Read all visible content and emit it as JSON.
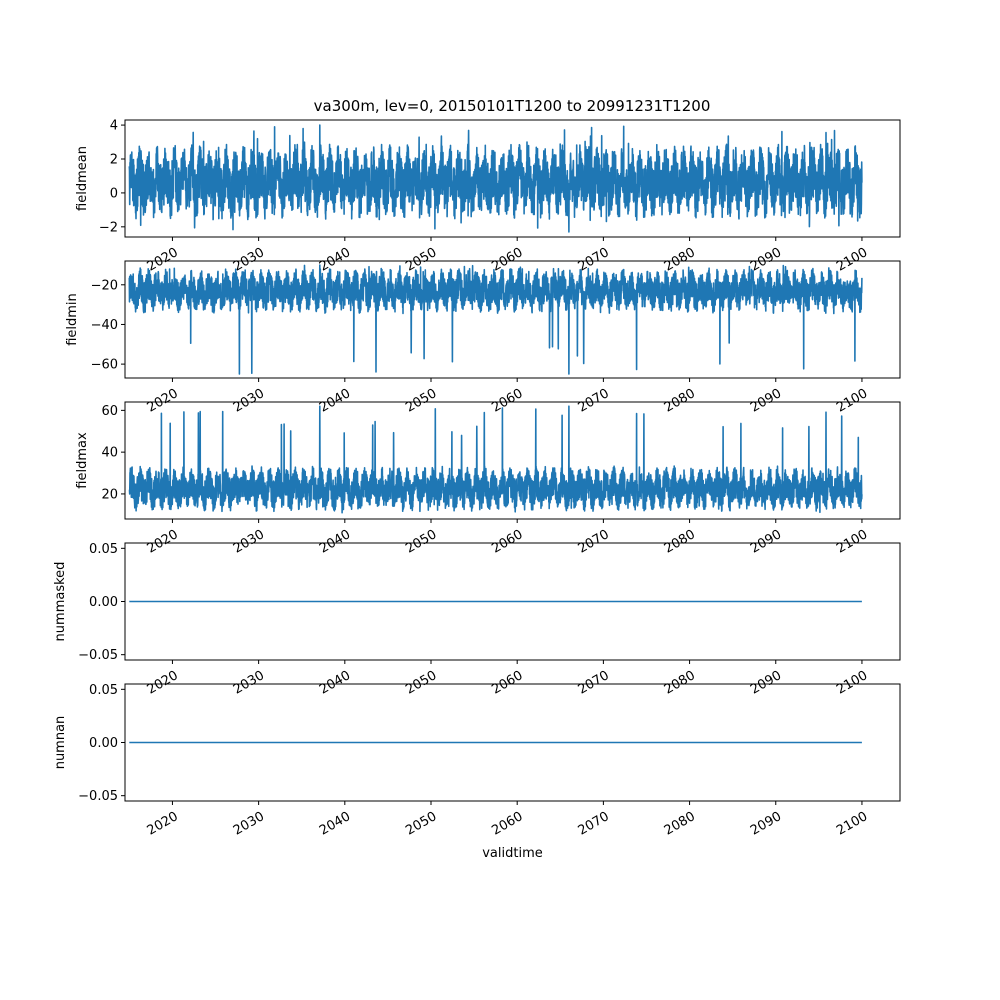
{
  "figure_title": "va300m, lev=0, 20150101T1200 to 20991231T1200",
  "line_color": "#1f77b4",
  "chart_data": [
    {
      "type": "line",
      "ylabel": "fieldmean",
      "xlabel": "",
      "xlim": [
        "2014-07-01",
        "2104-06-01"
      ],
      "ylim": [
        -2.6,
        4.3
      ],
      "yticks": [
        -2,
        0,
        2,
        4
      ],
      "ytick_labels": [
        "−2",
        "0",
        "2",
        "4"
      ],
      "xticks": [
        "2020-01-01",
        "2030-01-01",
        "2040-01-01",
        "2050-01-01",
        "2060-01-01",
        "2070-01-01",
        "2080-01-01",
        "2090-01-01",
        "2100-01-01"
      ],
      "xtick_labels": [
        "2020",
        "2030",
        "2040",
        "2050",
        "2060",
        "2070",
        "2080",
        "2090",
        "2100"
      ],
      "series": [
        {
          "x_start": "2015-01-01",
          "x_end": "2099-12-31",
          "baseline": 0.5,
          "typical_min": -1.3,
          "typical_max": 2.6,
          "extreme_min": -2.3,
          "extreme_max": 4.0,
          "cycles_per_year": 1
        }
      ]
    },
    {
      "type": "line",
      "ylabel": "fieldmin",
      "xlabel": "",
      "xlim": [
        "2014-07-01",
        "2104-06-01"
      ],
      "ylim": [
        -67,
        -8
      ],
      "yticks": [
        -60,
        -40,
        -20
      ],
      "ytick_labels": [
        "−60",
        "−40",
        "−20"
      ],
      "xticks": [
        "2020-01-01",
        "2030-01-01",
        "2040-01-01",
        "2050-01-01",
        "2060-01-01",
        "2070-01-01",
        "2080-01-01",
        "2090-01-01",
        "2100-01-01"
      ],
      "xtick_labels": [
        "2020",
        "2030",
        "2040",
        "2050",
        "2060",
        "2070",
        "2080",
        "2090",
        "2100"
      ],
      "series": [
        {
          "x_start": "2015-01-01",
          "x_end": "2099-12-31",
          "baseline": -22,
          "typical_min": -33,
          "typical_max": -13,
          "extreme_min": -65,
          "extreme_max": -10,
          "cycles_per_year": 1
        }
      ]
    },
    {
      "type": "line",
      "ylabel": "fieldmax",
      "xlabel": "",
      "xlim": [
        "2014-07-01",
        "2104-06-01"
      ],
      "ylim": [
        8,
        64
      ],
      "yticks": [
        20,
        40,
        60
      ],
      "ytick_labels": [
        "20",
        "40",
        "60"
      ],
      "xticks": [
        "2020-01-01",
        "2030-01-01",
        "2040-01-01",
        "2050-01-01",
        "2060-01-01",
        "2070-01-01",
        "2080-01-01",
        "2090-01-01",
        "2100-01-01"
      ],
      "xtick_labels": [
        "2020",
        "2030",
        "2040",
        "2050",
        "2060",
        "2070",
        "2080",
        "2090",
        "2100"
      ],
      "series": [
        {
          "x_start": "2015-01-01",
          "x_end": "2099-12-31",
          "baseline": 20,
          "typical_min": 13,
          "typical_max": 32,
          "extreme_min": 11,
          "extreme_max": 62,
          "cycles_per_year": 1
        }
      ]
    },
    {
      "type": "line",
      "ylabel": "nummasked",
      "xlabel": "",
      "xlim": [
        "2014-07-01",
        "2104-06-01"
      ],
      "ylim": [
        -0.055,
        0.055
      ],
      "yticks": [
        -0.05,
        0.0,
        0.05
      ],
      "ytick_labels": [
        "−0.05",
        "0.00",
        "0.05"
      ],
      "xticks": [
        "2020-01-01",
        "2030-01-01",
        "2040-01-01",
        "2050-01-01",
        "2060-01-01",
        "2070-01-01",
        "2080-01-01",
        "2090-01-01",
        "2100-01-01"
      ],
      "xtick_labels": [
        "2020",
        "2030",
        "2040",
        "2050",
        "2060",
        "2070",
        "2080",
        "2090",
        "2100"
      ],
      "series": [
        {
          "x_start": "2015-01-01",
          "x_end": "2099-12-31",
          "value": 0.0
        }
      ]
    },
    {
      "type": "line",
      "ylabel": "numnan",
      "xlabel": "validtime",
      "xlim": [
        "2014-07-01",
        "2104-06-01"
      ],
      "ylim": [
        -0.055,
        0.055
      ],
      "yticks": [
        -0.05,
        0.0,
        0.05
      ],
      "ytick_labels": [
        "−0.05",
        "0.00",
        "0.05"
      ],
      "xticks": [
        "2020-01-01",
        "2030-01-01",
        "2040-01-01",
        "2050-01-01",
        "2060-01-01",
        "2070-01-01",
        "2080-01-01",
        "2090-01-01",
        "2100-01-01"
      ],
      "xtick_labels": [
        "2020",
        "2030",
        "2040",
        "2050",
        "2060",
        "2070",
        "2080",
        "2090",
        "2100"
      ],
      "series": [
        {
          "x_start": "2015-01-01",
          "x_end": "2099-12-31",
          "value": 0.0
        }
      ]
    }
  ]
}
